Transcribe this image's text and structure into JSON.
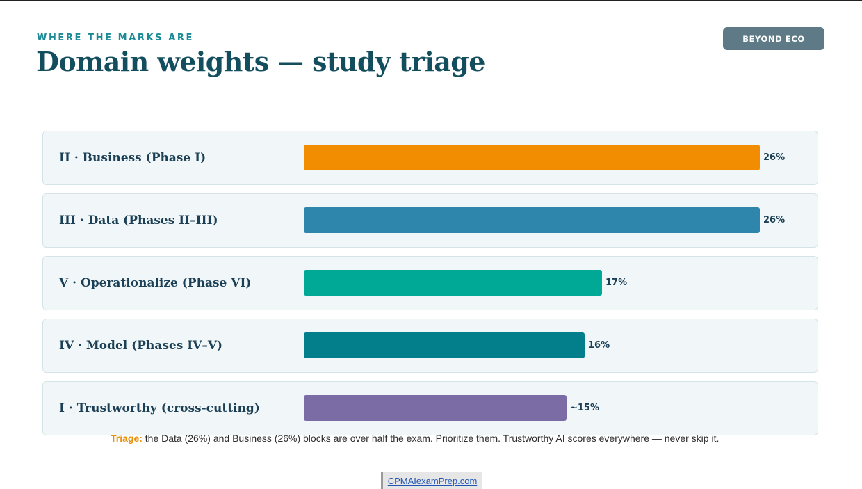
{
  "header": {
    "eyebrow": "WHERE THE MARKS ARE",
    "title": "Domain weights — study triage",
    "badge": "BEYOND ECO"
  },
  "chart_data": {
    "type": "bar",
    "orientation": "horizontal",
    "categories": [
      "II · Business (Phase I)",
      "III · Data (Phases II–III)",
      "V · Operationalize (Phase VI)",
      "IV · Model (Phases IV–V)",
      "I · Trustworthy (cross-cutting)"
    ],
    "values": [
      26,
      26,
      17,
      16,
      15
    ],
    "value_labels": [
      "26%",
      "26%",
      "17%",
      "16%",
      "~15%"
    ],
    "colors": [
      "#f28c00",
      "#2e86ad",
      "#00a896",
      "#037f8c",
      "#7b6ca6"
    ],
    "xlim": [
      0,
      26
    ],
    "grid": false,
    "legend": "none"
  },
  "note": {
    "lead": "Triage:",
    "text": " the Data (26%) and Business (26%) blocks are over half the exam. Prioritize them. Trustworthy AI scores everywhere — never skip it."
  },
  "footer": {
    "link_text": "CPMAIexamPrep.com"
  }
}
